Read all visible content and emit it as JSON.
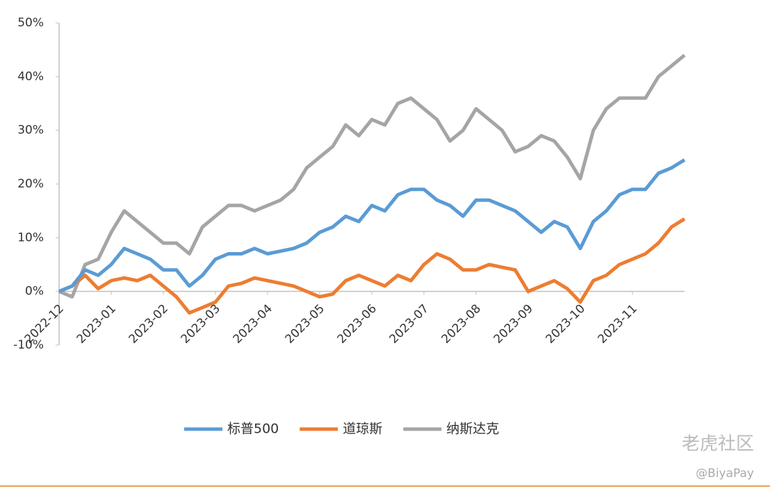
{
  "chart_data": {
    "type": "line",
    "categories": [
      "2022-12",
      null,
      null,
      null,
      "2023-01",
      null,
      null,
      null,
      "2023-02",
      null,
      null,
      null,
      "2023-03",
      null,
      null,
      null,
      "2023-04",
      null,
      null,
      null,
      "2023-05",
      null,
      null,
      null,
      "2023-06",
      null,
      null,
      null,
      "2023-07",
      null,
      null,
      null,
      "2023-08",
      null,
      null,
      null,
      "2023-09",
      null,
      null,
      null,
      "2023-10",
      null,
      null,
      null,
      "2023-11",
      null,
      null,
      null,
      null
    ],
    "series": [
      {
        "name": "标普500",
        "color": "#5b9bd5",
        "values": [
          0,
          1,
          4,
          3,
          5,
          8,
          7,
          6,
          4,
          4,
          1,
          3,
          6,
          7,
          7,
          8,
          7,
          7.5,
          8,
          9,
          11,
          12,
          14,
          13,
          16,
          15,
          18,
          19,
          19,
          17,
          16,
          14,
          17,
          17,
          16,
          15,
          13,
          11,
          13,
          12,
          8,
          13,
          15,
          18,
          19,
          19,
          22,
          23,
          24.5
        ]
      },
      {
        "name": "道琼斯",
        "color": "#ed7d31",
        "values": [
          0,
          1,
          3,
          0.5,
          2,
          2.5,
          2,
          3,
          1,
          -1,
          -4,
          -3,
          -2,
          1,
          1.5,
          2.5,
          2,
          1.5,
          1,
          0,
          -1,
          -0.5,
          2,
          3,
          2,
          1,
          3,
          2,
          5,
          7,
          6,
          4,
          4,
          5,
          4.5,
          4,
          0,
          1,
          2,
          0.5,
          -2,
          2,
          3,
          5,
          6,
          7,
          9,
          12,
          13.5
        ]
      },
      {
        "name": "纳斯达克",
        "color": "#a5a5a5",
        "values": [
          0,
          -1,
          5,
          6,
          11,
          15,
          13,
          11,
          9,
          9,
          7,
          12,
          14,
          16,
          16,
          15,
          16,
          17,
          19,
          23,
          25,
          27,
          31,
          29,
          32,
          31,
          35,
          36,
          34,
          32,
          28,
          30,
          34,
          32,
          30,
          26,
          27,
          29,
          28,
          25,
          21,
          30,
          34,
          36,
          36,
          36,
          40,
          42,
          44
        ]
      }
    ],
    "ylim": [
      -10,
      50
    ],
    "yticks": [
      {
        "value": -10,
        "label": "-10%"
      },
      {
        "value": 0,
        "label": "0%"
      },
      {
        "value": 10,
        "label": "10%"
      },
      {
        "value": 20,
        "label": "20%"
      },
      {
        "value": 30,
        "label": "30%"
      },
      {
        "value": 40,
        "label": "40%"
      },
      {
        "value": 50,
        "label": "50%"
      }
    ],
    "grid": false,
    "legend": "bottom",
    "watermark": "老虎社区",
    "credit": "@BiyaPay"
  }
}
